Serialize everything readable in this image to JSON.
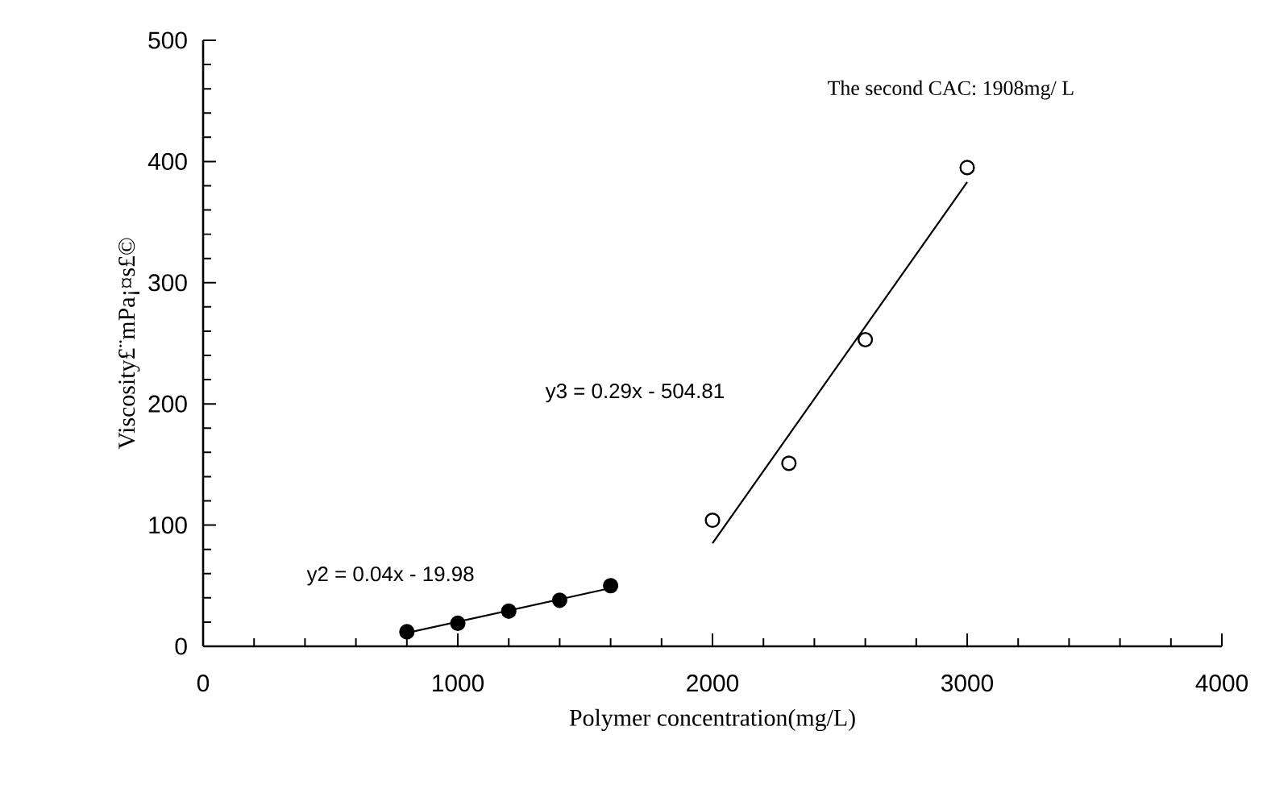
{
  "chart_data": {
    "type": "scatter",
    "xlabel": "Polymer concentration(mg/L)",
    "ylabel": "Viscosity£¨mPa¡¤s£©",
    "xlim": [
      0,
      4000
    ],
    "ylim": [
      0,
      500
    ],
    "xticks": [
      0,
      1000,
      2000,
      3000,
      4000
    ],
    "yticks": [
      0,
      100,
      200,
      300,
      400,
      500
    ],
    "grid": false,
    "series": [
      {
        "color": "#000000",
        "marker": "circle",
        "x": [
          800,
          1000,
          1200,
          1400,
          1600
        ],
        "values": [
          12,
          19,
          29,
          38,
          50
        ]
      },
      {
        "color": "#ffffff",
        "marker": "circle",
        "x": [
          2000,
          2300,
          2600,
          3000
        ],
        "values": [
          104,
          151,
          253,
          395
        ]
      },
      {
        "type": "line",
        "color": "#000000",
        "x": [
          800,
          1600
        ],
        "values": [
          11,
          48
        ]
      },
      {
        "type": "line",
        "color": "#000000",
        "x": [
          2000,
          3000
        ],
        "values": [
          85,
          383
        ]
      }
    ],
    "annotations": [
      "y2 = 0.04x - 19.98",
      "y3 = 0.29x - 504.81",
      "The second CAC: 1908mg/ L"
    ]
  }
}
